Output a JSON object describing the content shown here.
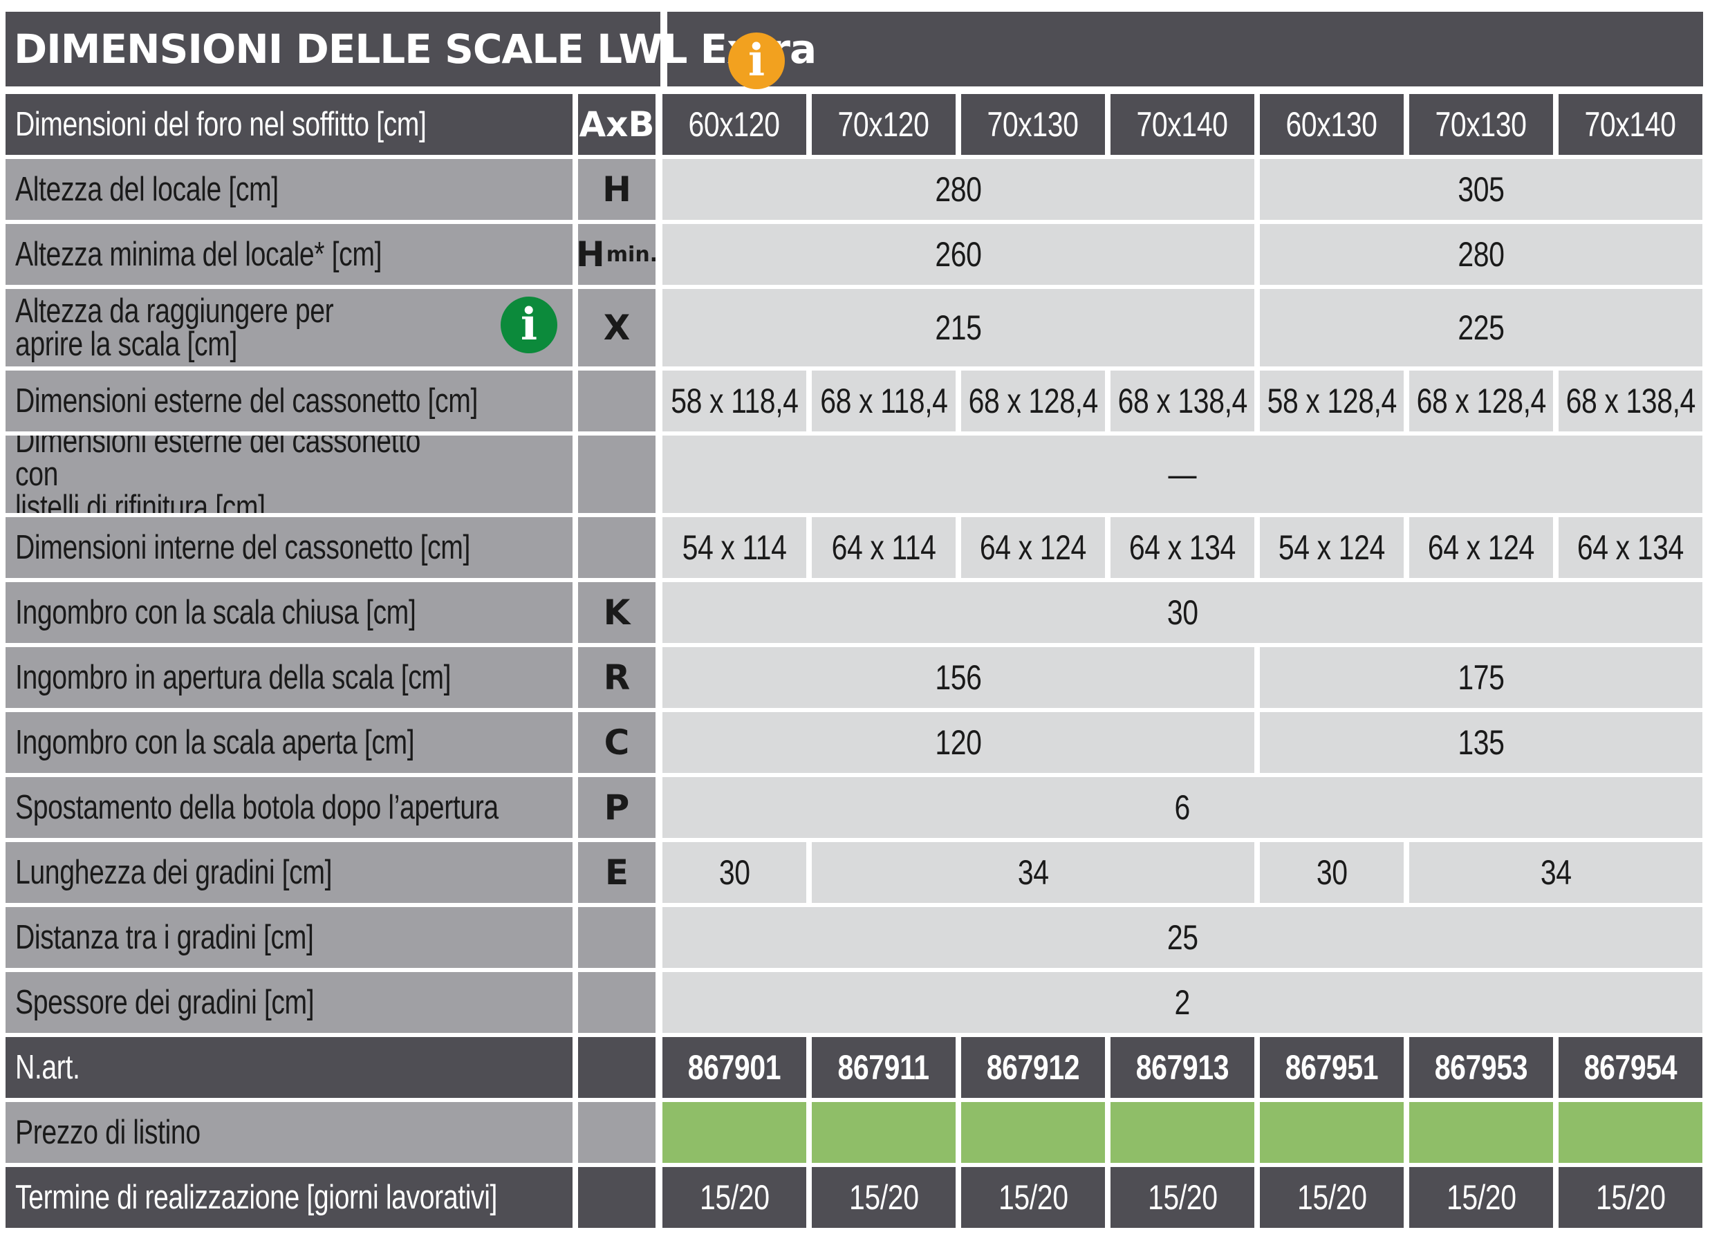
{
  "title": "DIMENSIONI DELLE SCALE LWL Extra",
  "info_icon": "info-icon",
  "colors": {
    "header_dark": "#4f4e54",
    "label_gray": "#a0a0a4",
    "value_light": "#d9dadb",
    "price_green": "#8fbe68",
    "info_orange": "#f2a11f",
    "info_green": "#0c8a3b"
  },
  "rows": [
    {
      "label": "Dimensioni del foro nel soffitto [cm]",
      "symbol": "AxB",
      "style": "dark",
      "cells": [
        {
          "span": 1,
          "text": "60x120"
        },
        {
          "span": 1,
          "text": "70x120"
        },
        {
          "span": 1,
          "text": "70x130"
        },
        {
          "span": 1,
          "text": "70x140"
        },
        {
          "span": 1,
          "text": "60x130"
        },
        {
          "span": 1,
          "text": "70x130"
        },
        {
          "span": 1,
          "text": "70x140"
        }
      ]
    },
    {
      "label": "Altezza del locale  [cm]",
      "symbol": "H",
      "cells": [
        {
          "span": 4,
          "text": "280"
        },
        {
          "span": 3,
          "text": "305"
        }
      ]
    },
    {
      "label": "Altezza minima del locale* [cm]",
      "symbol": "H",
      "symbol_sub": "min.",
      "cells": [
        {
          "span": 4,
          "text": "260"
        },
        {
          "span": 3,
          "text": "280"
        }
      ]
    },
    {
      "label": "Altezza da raggiungere per\naprire la scala [cm]",
      "symbol": "X",
      "info": true,
      "cells": [
        {
          "span": 4,
          "text": "215"
        },
        {
          "span": 3,
          "text": "225"
        }
      ]
    },
    {
      "label": "Dimensioni esterne del cassonetto [cm]",
      "symbol": "",
      "cells": [
        {
          "span": 1,
          "text": "58 x 118,4"
        },
        {
          "span": 1,
          "text": "68 x 118,4"
        },
        {
          "span": 1,
          "text": "68 x 128,4"
        },
        {
          "span": 1,
          "text": "68 x 138,4"
        },
        {
          "span": 1,
          "text": "58 x 128,4"
        },
        {
          "span": 1,
          "text": "68 x 128,4"
        },
        {
          "span": 1,
          "text": "68 x 138,4"
        }
      ]
    },
    {
      "label": "Dimensioni esterne del cassonetto con\nlistelli di rifinitura [cm]",
      "symbol": "",
      "cells": [
        {
          "span": 7,
          "text": "—"
        }
      ]
    },
    {
      "label": "Dimensioni interne del cassonetto [cm]",
      "symbol": "",
      "cells": [
        {
          "span": 1,
          "text": "54 x 114"
        },
        {
          "span": 1,
          "text": "64 x 114"
        },
        {
          "span": 1,
          "text": "64 x 124"
        },
        {
          "span": 1,
          "text": "64 x 134"
        },
        {
          "span": 1,
          "text": "54 x 124"
        },
        {
          "span": 1,
          "text": "64 x 124"
        },
        {
          "span": 1,
          "text": "64 x 134"
        }
      ]
    },
    {
      "label": "Ingombro con la scala chiusa [cm]",
      "symbol": "K",
      "cells": [
        {
          "span": 7,
          "text": "30"
        }
      ]
    },
    {
      "label": "Ingombro in apertura della scala [cm]",
      "symbol": "R",
      "cells": [
        {
          "span": 4,
          "text": "156"
        },
        {
          "span": 3,
          "text": "175"
        }
      ]
    },
    {
      "label": "Ingombro con la scala aperta  [cm]",
      "symbol": "C",
      "cells": [
        {
          "span": 4,
          "text": "120"
        },
        {
          "span": 3,
          "text": "135"
        }
      ]
    },
    {
      "label": "Spostamento della botola dopo l’apertura",
      "symbol": "P",
      "cells": [
        {
          "span": 7,
          "text": "6"
        }
      ]
    },
    {
      "label": "Lunghezza dei gradini [cm]",
      "symbol": "E",
      "cells": [
        {
          "span": 1,
          "text": "30"
        },
        {
          "span": 3,
          "text": "34"
        },
        {
          "span": 1,
          "text": "30"
        },
        {
          "span": 2,
          "text": "34"
        }
      ]
    },
    {
      "label": "Distanza tra i gradini [cm]",
      "symbol": "",
      "cells": [
        {
          "span": 7,
          "text": "25"
        }
      ]
    },
    {
      "label": "Spessore dei gradini [cm]",
      "symbol": "",
      "cells": [
        {
          "span": 7,
          "text": "2"
        }
      ]
    },
    {
      "label": "N.art.",
      "symbol": "",
      "style": "dark-bold",
      "cells": [
        {
          "span": 1,
          "text": "867901"
        },
        {
          "span": 1,
          "text": "867911"
        },
        {
          "span": 1,
          "text": "867912"
        },
        {
          "span": 1,
          "text": "867913"
        },
        {
          "span": 1,
          "text": "867951"
        },
        {
          "span": 1,
          "text": "867953"
        },
        {
          "span": 1,
          "text": "867954"
        }
      ]
    },
    {
      "label": "Prezzo di listino",
      "symbol": "",
      "style": "green",
      "cells": [
        {
          "span": 1,
          "text": ""
        },
        {
          "span": 1,
          "text": ""
        },
        {
          "span": 1,
          "text": ""
        },
        {
          "span": 1,
          "text": ""
        },
        {
          "span": 1,
          "text": ""
        },
        {
          "span": 1,
          "text": ""
        },
        {
          "span": 1,
          "text": ""
        }
      ]
    },
    {
      "label": "Termine di realizzazione [giorni lavorativi]",
      "symbol": "",
      "style": "dark-last",
      "cells": [
        {
          "span": 1,
          "text": "15/20"
        },
        {
          "span": 1,
          "text": "15/20"
        },
        {
          "span": 1,
          "text": "15/20"
        },
        {
          "span": 1,
          "text": "15/20"
        },
        {
          "span": 1,
          "text": "15/20"
        },
        {
          "span": 1,
          "text": "15/20"
        },
        {
          "span": 1,
          "text": "15/20"
        }
      ]
    }
  ]
}
